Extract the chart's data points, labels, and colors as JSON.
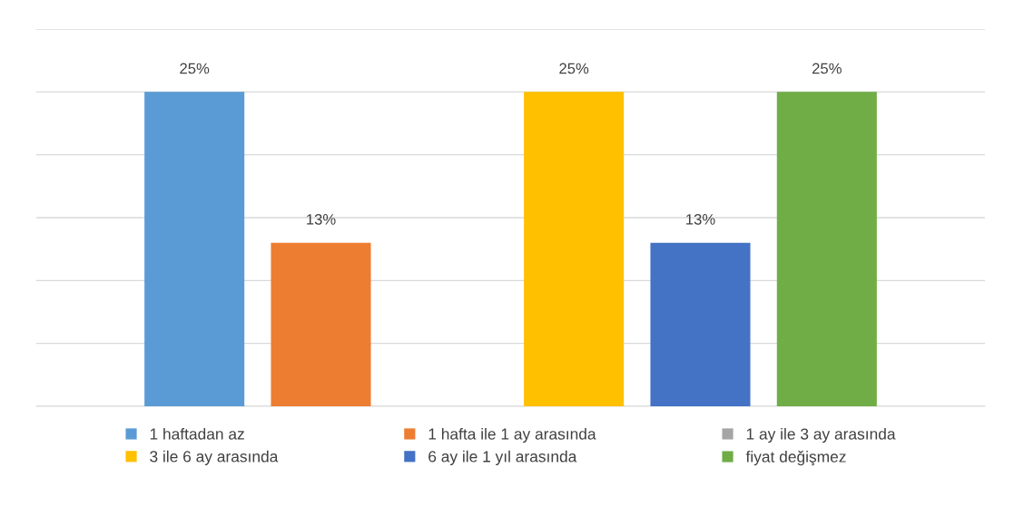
{
  "chart_data": {
    "type": "bar",
    "categories": [
      null
    ],
    "series": [
      {
        "name": "1 haftadan az",
        "color": "#5b9bd5",
        "values": [
          25
        ],
        "value_labels": [
          "25%"
        ]
      },
      {
        "name": "1 hafta ile 1 ay arasında",
        "color": "#ed7d31",
        "values": [
          13
        ],
        "value_labels": [
          "13%"
        ]
      },
      {
        "name": "1 ay ile 3 ay arasında",
        "color": "#a5a5a5",
        "values": [
          0
        ],
        "value_labels": [
          null
        ]
      },
      {
        "name": "3 ile 6 ay arasında",
        "color": "#ffc000",
        "values": [
          25
        ],
        "value_labels": [
          "25%"
        ]
      },
      {
        "name": "6 ay ile 1 yıl arasında",
        "color": "#4472c4",
        "values": [
          13
        ],
        "value_labels": [
          "13%"
        ]
      },
      {
        "name": "fiyat değişmez",
        "color": "#70ad47",
        "values": [
          25
        ],
        "value_labels": [
          "25%"
        ]
      }
    ],
    "ylim": [
      0,
      30
    ],
    "yticks": [
      {
        "value": 0,
        "label": null
      },
      {
        "value": 5,
        "label": null
      },
      {
        "value": 10,
        "label": null
      },
      {
        "value": 15,
        "label": null
      },
      {
        "value": 20,
        "label": null
      },
      {
        "value": 25,
        "label": null
      },
      {
        "value": 30,
        "label": null
      }
    ],
    "grid": "y",
    "legend": "bottom"
  }
}
